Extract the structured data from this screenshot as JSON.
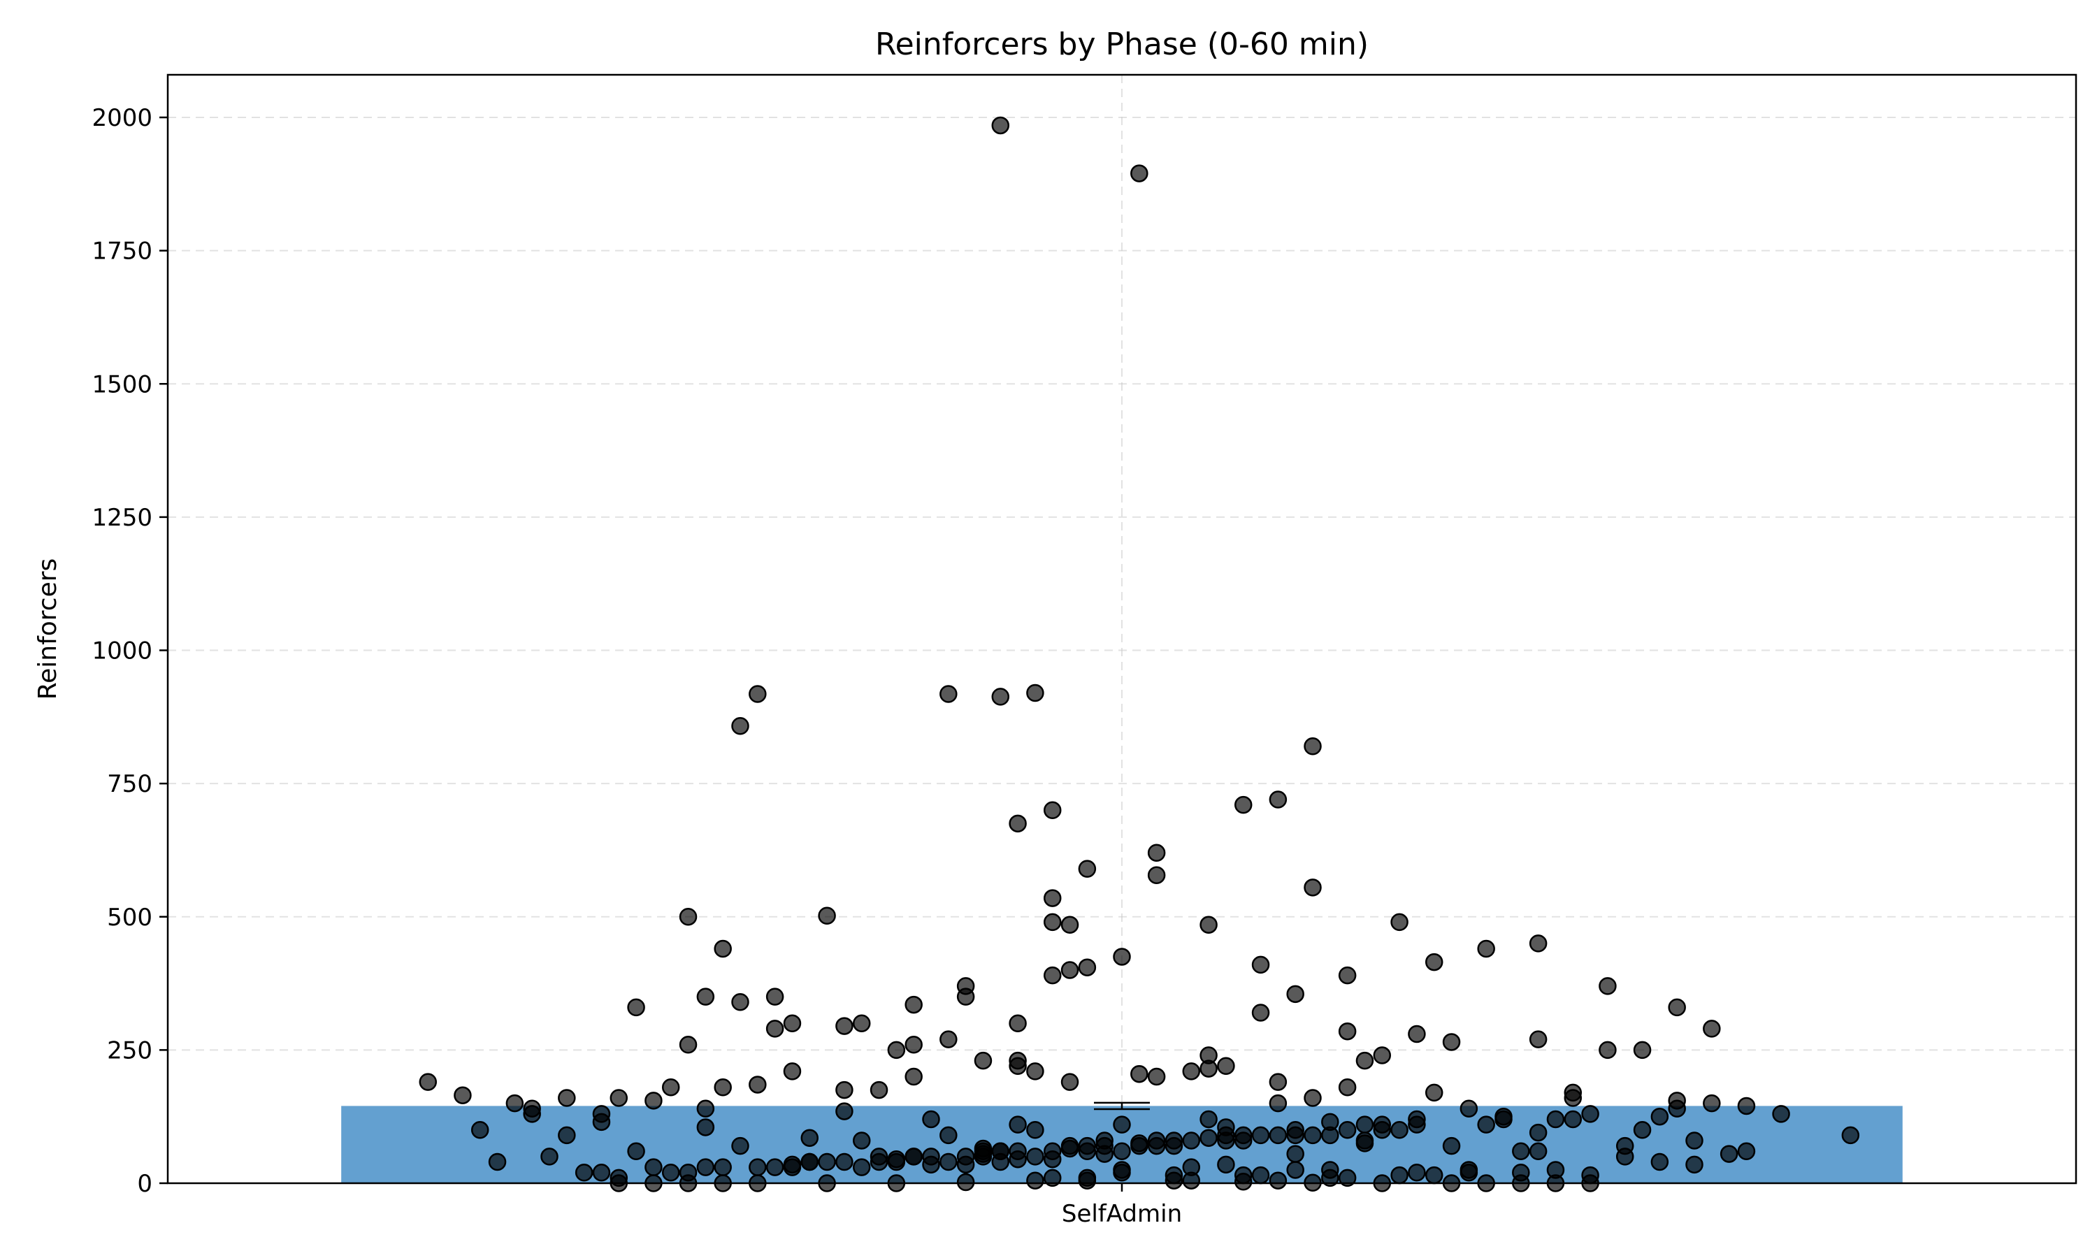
{
  "chart_data": {
    "type": "bar",
    "title": "Reinforcers by Phase (0-60 min)",
    "xlabel": "",
    "ylabel": "Reinforcers",
    "categories": [
      "SelfAdmin"
    ],
    "values": [
      145
    ],
    "error_bars": [
      {
        "category": "SelfAdmin",
        "mean": 145,
        "sem": 6
      }
    ],
    "bar_color": "#5b9bcd",
    "point_color": "#000000",
    "point_opacity": 0.65,
    "ylim": [
      0,
      2080
    ],
    "yticks": [
      0,
      250,
      500,
      750,
      1000,
      1250,
      1500,
      1750,
      2000
    ],
    "ytick_labels": [
      "0",
      "250",
      "500",
      "750",
      "1000",
      "1250",
      "1500",
      "1750",
      "2000"
    ],
    "grid": true,
    "grid_style": "dashed",
    "xlim": [
      -0.55,
      0.55
    ],
    "series": [
      {
        "type": "scatter",
        "jitter_x": [
          -0.07,
          0.01,
          -0.21,
          -0.05,
          -0.1,
          -0.07,
          -0.22,
          -0.06,
          -0.17,
          0.11,
          0.09,
          0.07,
          -0.04,
          0.02,
          0.11,
          -0.02,
          0.02,
          -0.25,
          -0.23,
          -0.04,
          -0.04,
          0.05,
          -0.03,
          -0.03,
          -0.02,
          0.0,
          0.08,
          0.16,
          0.18,
          -0.04,
          -0.24,
          -0.2,
          -0.09,
          -0.22,
          -0.19,
          -0.15,
          -0.16,
          -0.12,
          -0.09,
          -0.25,
          0.21,
          0.24,
          0.24,
          0.1,
          0.13,
          0.28,
          -0.4,
          -0.32,
          -0.21,
          -0.12,
          -0.06,
          0.05,
          0.14,
          0.3,
          0.34,
          0.35,
          0.32,
          0.34,
          -0.35,
          -0.27,
          -0.3,
          -0.24,
          -0.16,
          -0.11,
          -0.06,
          0.06,
          0.12,
          0.17,
          0.22,
          0.27,
          0.32,
          0.26,
          0.18,
          0.13,
          0.09,
          0.04,
          -0.06,
          -0.13,
          -0.19,
          -0.23,
          -0.29,
          -0.34,
          -0.37,
          0.36,
          0.33,
          0.3,
          0.25,
          0.2,
          0.15,
          0.1,
          -0.01,
          0.03,
          -0.08,
          -0.14,
          -0.18,
          -0.27,
          -0.31,
          0.42,
          0.29,
          0.23,
          -0.36,
          -0.33,
          -0.28,
          -0.22,
          -0.15,
          -0.1,
          -0.05,
          0.0,
          0.05,
          0.09,
          0.14,
          0.19,
          0.24,
          0.29,
          -0.26,
          -0.2,
          -0.13,
          -0.08,
          -0.02,
          0.02,
          0.07,
          0.12,
          0.16,
          0.21,
          0.26,
          0.31,
          0.33,
          -0.3,
          -0.24,
          -0.17,
          -0.12,
          -0.07,
          -0.01,
          0.04,
          0.08,
          0.13,
          0.17,
          0.22,
          0.27,
          -0.29,
          -0.25,
          -0.19,
          -0.14,
          -0.09,
          -0.04,
          0.01,
          0.06,
          0.11,
          0.15,
          0.2,
          0.25,
          -0.23,
          -0.18,
          -0.12,
          -0.07,
          -0.03,
          0.02,
          0.06,
          0.1,
          0.14,
          0.18,
          0.23,
          -0.21,
          -0.16,
          -0.11,
          -0.06,
          -0.02,
          0.03,
          0.07,
          0.12,
          0.16,
          0.2,
          -0.19,
          -0.13,
          -0.08,
          -0.03,
          0.01,
          0.05,
          0.09,
          0.13,
          0.17,
          -0.15,
          -0.1,
          -0.05,
          0.0,
          0.04,
          0.08,
          0.12,
          -0.11,
          -0.06,
          -0.01,
          0.03,
          0.07,
          0.1,
          -0.09,
          -0.04,
          0.0,
          0.04,
          -0.07,
          -0.02,
          0.02,
          0.06,
          -0.08,
          -0.05,
          -0.03,
          0.01,
          0.05,
          0.09,
          0.11,
          0.15,
          -0.16,
          -0.12,
          0.19,
          -0.2,
          0.17,
          0.13,
          -0.14,
          -0.1,
          -0.06,
          0.08,
          -0.28,
          0.28,
          -0.26,
          0.26,
          -0.32,
          0.32,
          0.36,
          -0.38,
          -0.34,
          0.38,
          0.31,
          -0.3,
          -0.24,
          0.24,
          -0.18,
          0.14,
          -0.08,
          0.1,
          -0.04,
          0.06,
          0.0,
          0.03,
          -0.02,
          -0.05,
          0.07,
          -0.09,
          0.11,
          -0.13,
          0.15,
          -0.17,
          0.19,
          -0.21,
          0.21,
          -0.23,
          0.23,
          -0.25,
          0.25,
          -0.27,
          0.27,
          -0.29,
          0.29,
          -0.31,
          -0.33,
          0.33,
          0.35,
          -0.35,
          0.37,
          -0.37
        ],
        "values": [
          1985,
          1895,
          918,
          920,
          918,
          913,
          858,
          675,
          502,
          820,
          720,
          710,
          700,
          620,
          555,
          590,
          578,
          500,
          440,
          535,
          490,
          485,
          485,
          400,
          405,
          425,
          410,
          490,
          415,
          390,
          350,
          350,
          350,
          340,
          300,
          300,
          295,
          335,
          370,
          260,
          440,
          450,
          270,
          355,
          390,
          370,
          190,
          90,
          185,
          200,
          220,
          240,
          230,
          250,
          150,
          55,
          330,
          290,
          150,
          155,
          130,
          140,
          135,
          120,
          110,
          105,
          115,
          120,
          125,
          130,
          140,
          160,
          170,
          180,
          190,
          210,
          230,
          250,
          210,
          180,
          160,
          130,
          100,
          60,
          80,
          100,
          120,
          140,
          110,
          90,
          80,
          70,
          60,
          50,
          40,
          30,
          20,
          90,
          70,
          60,
          40,
          50,
          60,
          70,
          80,
          90,
          100,
          110,
          120,
          90,
          80,
          70,
          60,
          50,
          20,
          30,
          40,
          50,
          60,
          70,
          80,
          90,
          100,
          110,
          120,
          40,
          35,
          20,
          30,
          40,
          50,
          60,
          70,
          80,
          90,
          100,
          110,
          120,
          15,
          10,
          20,
          30,
          40,
          50,
          60,
          70,
          80,
          90,
          100,
          20,
          25,
          30,
          40,
          50,
          60,
          70,
          80,
          90,
          100,
          110,
          15,
          20,
          30,
          40,
          50,
          60,
          70,
          80,
          90,
          10,
          15,
          25,
          35,
          45,
          55,
          65,
          75,
          85,
          5,
          10,
          20,
          30,
          40,
          50,
          60,
          5,
          15,
          25,
          35,
          45,
          55,
          5,
          15,
          25,
          35,
          10,
          20,
          30,
          40,
          5,
          200,
          220,
          230,
          210,
          190,
          205,
          215,
          150,
          160,
          240,
          175,
          260,
          265,
          290,
          280,
          285,
          175,
          270,
          300,
          320,
          330,
          250,
          180,
          170,
          160,
          155,
          145,
          165,
          140,
          130,
          125,
          115,
          105,
          95,
          85,
          75,
          65,
          55,
          45,
          35,
          25,
          15,
          10,
          5,
          3,
          2,
          1,
          0,
          0,
          0,
          0,
          0,
          0,
          0,
          0,
          0,
          0,
          0,
          0,
          0
        ]
      }
    ]
  }
}
